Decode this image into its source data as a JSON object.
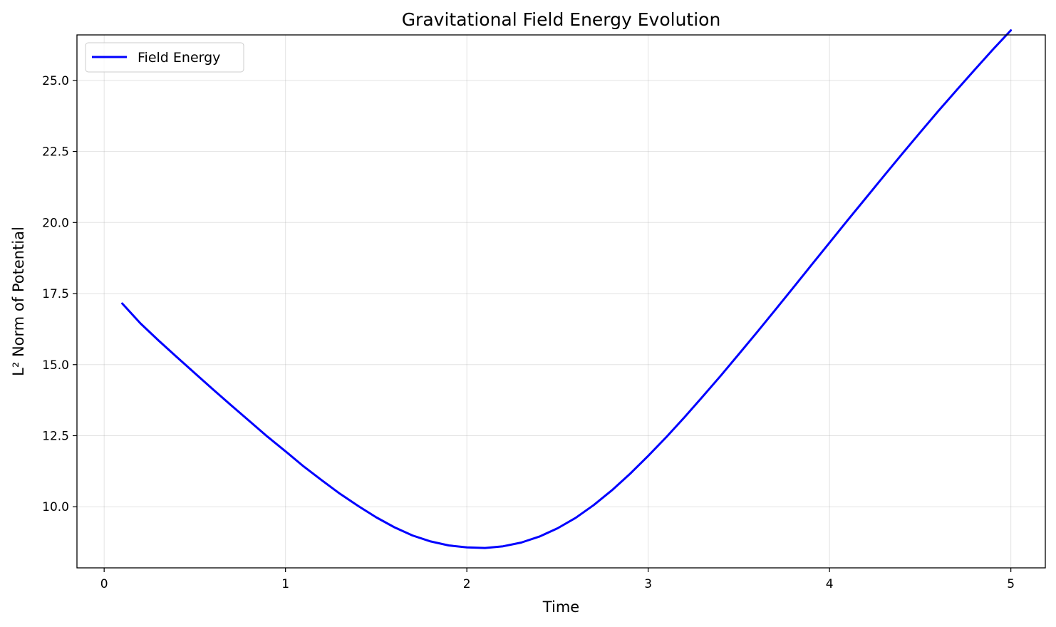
{
  "chart_data": {
    "type": "line",
    "title": "Gravitational Field Energy Evolution",
    "xlabel": "Time",
    "ylabel": "L² Norm of Potential",
    "xlim": [
      -0.15,
      5.19
    ],
    "ylim": [
      7.85,
      26.6
    ],
    "xticks": [
      0,
      1,
      2,
      3,
      4,
      5
    ],
    "xtick_labels": [
      "0",
      "1",
      "2",
      "3",
      "4",
      "5"
    ],
    "yticks": [
      10.0,
      12.5,
      15.0,
      17.5,
      20.0,
      22.5,
      25.0
    ],
    "ytick_labels": [
      "10.0",
      "12.5",
      "15.0",
      "17.5",
      "20.0",
      "22.5",
      "25.0"
    ],
    "grid": true,
    "legend_position": "top-left",
    "series": [
      {
        "name": "Field Energy",
        "color": "#0000ff",
        "x": [
          0.1,
          0.2,
          0.3,
          0.4,
          0.5,
          0.6,
          0.7,
          0.8,
          0.9,
          1.0,
          1.1,
          1.2,
          1.3,
          1.4,
          1.5,
          1.6,
          1.7,
          1.8,
          1.9,
          2.0,
          2.1,
          2.2,
          2.3,
          2.4,
          2.5,
          2.6,
          2.7,
          2.8,
          2.9,
          3.0,
          3.1,
          3.2,
          3.3,
          3.4,
          3.5,
          3.6,
          3.7,
          3.8,
          3.9,
          4.0,
          4.1,
          4.2,
          4.3,
          4.4,
          4.5,
          4.6,
          4.7,
          4.8,
          4.9,
          5.0
        ],
        "y": [
          17.15,
          16.45,
          15.85,
          15.27,
          14.7,
          14.13,
          13.57,
          13.02,
          12.47,
          11.95,
          11.42,
          10.93,
          10.46,
          10.03,
          9.63,
          9.28,
          8.99,
          8.78,
          8.64,
          8.57,
          8.55,
          8.61,
          8.74,
          8.95,
          9.24,
          9.61,
          10.06,
          10.58,
          11.16,
          11.79,
          12.45,
          13.15,
          13.87,
          14.61,
          15.37,
          16.14,
          16.92,
          17.71,
          18.5,
          19.29,
          20.08,
          20.86,
          21.64,
          22.41,
          23.17,
          23.92,
          24.65,
          25.37,
          26.08,
          26.76
        ]
      }
    ]
  }
}
